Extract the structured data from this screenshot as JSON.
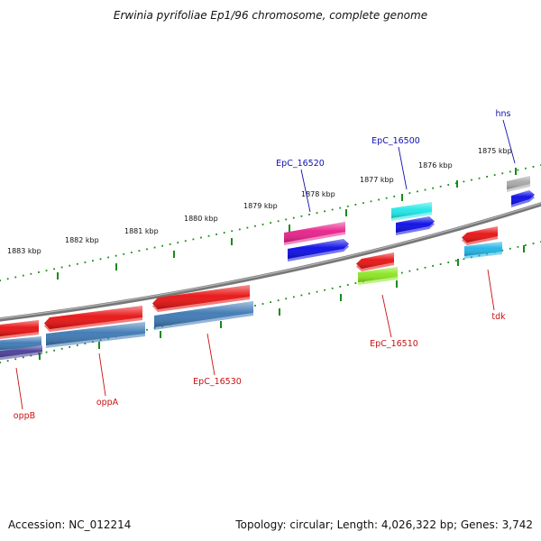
{
  "title": "Erwinia pyrifoliae Ep1/96 chromosome, complete genome",
  "footer": {
    "accession": "Accession: NC_012214",
    "summary": "Topology: circular; Length: 4,026,322 bp; Genes: 3,742"
  },
  "colors": {
    "backbone": "#8a8a8a",
    "tick": "#1a8a1a",
    "label_forward": "#1010b0",
    "label_reverse": "#cc1010"
  },
  "ticks": [
    {
      "label": "1875 kbp"
    },
    {
      "label": "1876 kbp"
    },
    {
      "label": "1877 kbp"
    },
    {
      "label": "1878 kbp"
    },
    {
      "label": "1879 kbp"
    },
    {
      "label": "1880 kbp"
    },
    {
      "label": "1881 kbp"
    },
    {
      "label": "1882 kbp"
    },
    {
      "label": "1883 kbp"
    }
  ],
  "labels": [
    {
      "text": "hns",
      "strand": "forward"
    },
    {
      "text": "EpC_16500",
      "strand": "forward"
    },
    {
      "text": "EpC_16520",
      "strand": "forward"
    },
    {
      "text": "tdk",
      "strand": "reverse"
    },
    {
      "text": "EpC_16510",
      "strand": "reverse"
    },
    {
      "text": "EpC_16530",
      "strand": "reverse"
    },
    {
      "text": "oppA",
      "strand": "reverse"
    },
    {
      "text": "oppB",
      "strand": "reverse"
    }
  ],
  "features": [
    {
      "color": "#a8a8a8",
      "strand": "forward"
    },
    {
      "color": "#0a0ae6",
      "strand": "forward"
    },
    {
      "color": "#1ee8e8",
      "strand": "forward"
    },
    {
      "color": "#0a0ae6",
      "strand": "forward"
    },
    {
      "color": "#e81e8a",
      "strand": "forward"
    },
    {
      "color": "#0a0ae6",
      "strand": "forward"
    },
    {
      "color": "#e81010",
      "strand": "reverse"
    },
    {
      "color": "#1eb4e8",
      "strand": "reverse"
    },
    {
      "color": "#e81010",
      "strand": "reverse"
    },
    {
      "color": "#8ae61e",
      "strand": "reverse"
    },
    {
      "color": "#e81010",
      "strand": "reverse"
    },
    {
      "color": "#3c78b4",
      "strand": "reverse"
    },
    {
      "color": "#e81010",
      "strand": "reverse"
    },
    {
      "color": "#3c78b4",
      "strand": "reverse"
    },
    {
      "color": "#e81010",
      "strand": "reverse"
    },
    {
      "color": "#3c78b4",
      "strand": "reverse"
    },
    {
      "color": "#483c96",
      "strand": "reverse"
    }
  ]
}
